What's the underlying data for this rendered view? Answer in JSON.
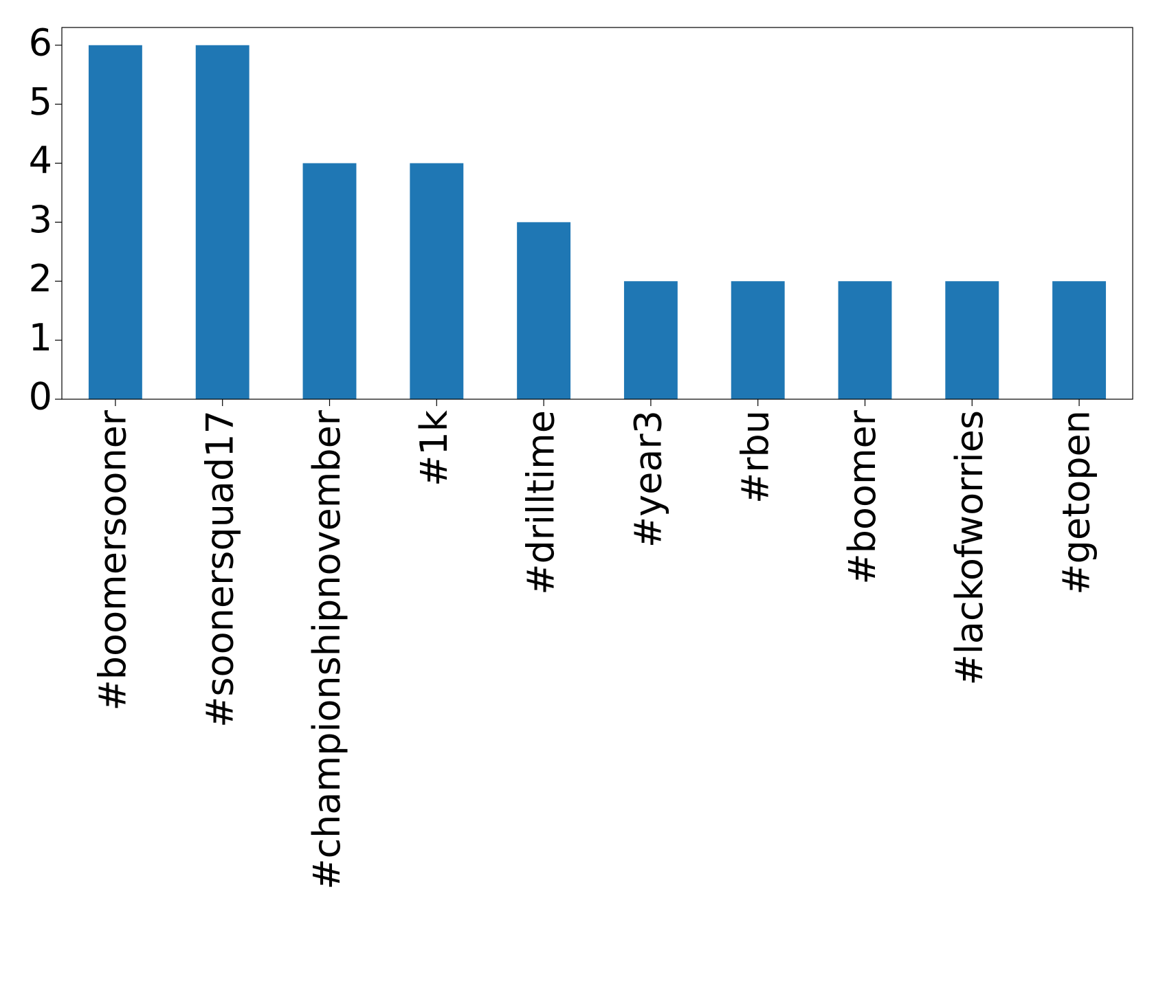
{
  "chart_data": {
    "type": "bar",
    "categories": [
      "#boomersooner",
      "#soonersquad17",
      "#championshipnovember",
      "#1k",
      "#drilltime",
      "#year3",
      "#rbu",
      "#boomer",
      "#lackofworries",
      "#getopen"
    ],
    "values": [
      6,
      6,
      4,
      4,
      3,
      2,
      2,
      2,
      2,
      2
    ],
    "color": "#1f77b4",
    "ylim": [
      0,
      6.3
    ],
    "yticks": [
      0,
      1,
      2,
      3,
      4,
      5,
      6
    ],
    "grid": false
  }
}
